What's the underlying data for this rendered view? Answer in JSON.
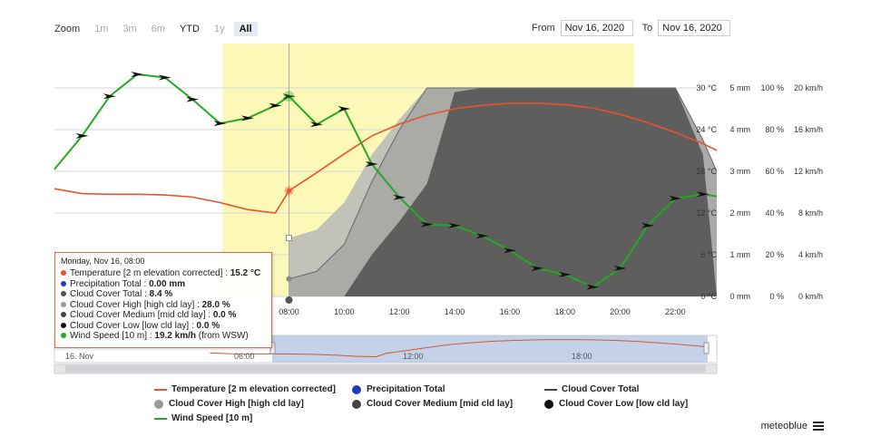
{
  "zoom": {
    "label": "Zoom",
    "buttons": [
      "1m",
      "3m",
      "6m",
      "YTD",
      "1y",
      "All"
    ],
    "selected": "All"
  },
  "range": {
    "from_label": "From",
    "from_value": "Nov 16, 2020",
    "to_label": "To",
    "to_value": "Nov 16, 2020"
  },
  "tooltip": {
    "header": "Monday, Nov 16, 08:00",
    "rows": [
      {
        "name": "Temperature [2 m elevation corrected]",
        "value": "15.2 °C",
        "color": "#e8532b"
      },
      {
        "name": "Precipitation Total",
        "value": "0.00 mm",
        "color": "#1f3fbf"
      },
      {
        "name": "Cloud Cover Total",
        "value": "8.4 %",
        "color": "#555555"
      },
      {
        "name": "Cloud Cover High [high cld lay]",
        "value": "28.0 %",
        "color": "#999999"
      },
      {
        "name": "Cloud Cover Medium [mid cld lay]",
        "value": "0.0 %",
        "color": "#444444"
      },
      {
        "name": "Cloud Cover Low [low cld lay]",
        "value": "0.0 %",
        "color": "#111111"
      },
      {
        "name": "Wind Speed [10 m]",
        "value": "19.2 km/h",
        "extra": "(from WSW)",
        "color": "#22aa22"
      }
    ]
  },
  "legend": [
    {
      "label": "Temperature [2 m elevation corrected]",
      "kind": "line",
      "color": "#e8532b"
    },
    {
      "label": "Precipitation Total",
      "kind": "dot",
      "color": "#1f3fbf"
    },
    {
      "label": "Cloud Cover Total",
      "kind": "line",
      "color": "#444444"
    },
    {
      "label": "Cloud Cover High [high cld lay]",
      "kind": "dot",
      "color": "#999999"
    },
    {
      "label": "Cloud Cover Medium [mid cld lay]",
      "kind": "dot",
      "color": "#444444"
    },
    {
      "label": "Cloud Cover Low [low cld lay]",
      "kind": "dot",
      "color": "#111111"
    },
    {
      "label": "Wind Speed [10 m]",
      "kind": "line",
      "color": "#22aa22"
    }
  ],
  "brand": "meteoblue",
  "navigator": {
    "labels": [
      "16. Nov",
      "06:00",
      "12:00",
      "18:00"
    ]
  },
  "chart_data": {
    "type": "line",
    "title": "",
    "x_unit": "hour of day, Nov 16",
    "x_ticks": [
      "08:00",
      "10:00",
      "12:00",
      "14:00",
      "16:00",
      "18:00",
      "20:00",
      "22:00"
    ],
    "x_range": [
      -0.5,
      23.5
    ],
    "axes": [
      {
        "unit": "°C",
        "ticks": [
          "0 °C",
          "6 °C",
          "12 °C",
          "18 °C",
          "24 °C",
          "30 °C"
        ],
        "range": [
          0,
          30
        ]
      },
      {
        "unit": "mm",
        "ticks": [
          "0 mm",
          "1 mm",
          "2 mm",
          "3 mm",
          "4 mm",
          "5 mm"
        ],
        "range": [
          0,
          5
        ]
      },
      {
        "unit": "%",
        "ticks": [
          "0 %",
          "20 %",
          "40 %",
          "60 %",
          "80 %",
          "100 %"
        ],
        "range": [
          0,
          100
        ]
      },
      {
        "unit": "km/h",
        "ticks": [
          "0 km/h",
          "4 km/h",
          "8 km/h",
          "12 km/h",
          "16 km/h",
          "20 km/h"
        ],
        "range": [
          0,
          20
        ]
      }
    ],
    "daylight_band": [
      5.6,
      20.5
    ],
    "highlight_x": 8,
    "series": [
      {
        "name": "Temperature [2 m elevation corrected]",
        "axis": "°C",
        "color": "#e8532b",
        "x": [
          -0.5,
          0.5,
          1.5,
          2.5,
          3.5,
          4.5,
          5.5,
          6.5,
          7.5,
          8,
          9,
          10,
          11,
          12,
          13,
          14,
          15,
          16,
          17,
          18,
          19,
          20,
          21,
          22,
          23,
          23.5
        ],
        "y": [
          15.5,
          14.8,
          14.7,
          14.7,
          14.6,
          14.3,
          13.5,
          12.5,
          12.0,
          15.2,
          17.8,
          20.5,
          23.1,
          24.8,
          26.1,
          27.0,
          27.5,
          27.8,
          27.8,
          27.6,
          27.1,
          26.2,
          25.0,
          23.6,
          22.0,
          21.0
        ]
      },
      {
        "name": "Wind Speed [10 m]",
        "axis": "km/h",
        "color": "#22aa22",
        "x": [
          -0.5,
          0.5,
          1.5,
          2.5,
          3.5,
          4.5,
          5.5,
          6.5,
          7.5,
          8,
          9,
          10,
          11,
          12,
          13,
          14,
          15,
          16,
          17,
          18,
          19,
          20,
          21,
          22,
          23,
          23.5
        ],
        "y": [
          12.2,
          15.4,
          19.2,
          21.3,
          21.0,
          18.9,
          16.6,
          17.1,
          18.3,
          19.2,
          16.5,
          18.0,
          12.7,
          9.5,
          6.9,
          6.8,
          5.8,
          4.4,
          2.7,
          2.1,
          0.9,
          2.7,
          6.8,
          9.4,
          9.8,
          9.6
        ]
      },
      {
        "name": "Cloud Cover Total",
        "axis": "%",
        "color": "#555555",
        "x": [
          8,
          9,
          10,
          11,
          12,
          13,
          14,
          15,
          16,
          17,
          18,
          19,
          20,
          21,
          22,
          23,
          23.5
        ],
        "y": [
          8.4,
          12,
          25,
          55,
          80,
          100,
          100,
          100,
          100,
          100,
          100,
          100,
          100,
          100,
          100,
          75,
          60
        ]
      },
      {
        "name": "Cloud Cover High [high cld lay]",
        "axis": "%",
        "color": "#999999",
        "x": [
          8,
          9,
          10,
          11,
          12,
          13,
          14,
          15,
          16,
          17,
          18,
          19,
          20,
          21,
          22,
          23,
          23.5
        ],
        "y": [
          28,
          32,
          45,
          68,
          85,
          100,
          100,
          100,
          100,
          100,
          100,
          100,
          100,
          100,
          100,
          75,
          60
        ]
      },
      {
        "name": "Cloud Cover Medium [mid cld lay]",
        "axis": "%",
        "color": "#444444",
        "x": [
          8,
          10,
          11,
          12,
          13,
          14,
          15,
          16,
          17,
          18,
          19,
          20,
          21,
          22,
          23,
          23.5
        ],
        "y": [
          0,
          0,
          20,
          36,
          54,
          98,
          100,
          100,
          100,
          100,
          100,
          100,
          100,
          100,
          68,
          0
        ]
      },
      {
        "name": "Cloud Cover Low [low cld lay]",
        "axis": "%",
        "color": "#111111",
        "x": [
          8
        ],
        "y": [
          0
        ]
      },
      {
        "name": "Precipitation Total",
        "axis": "mm",
        "color": "#1f3fbf",
        "x": [
          8
        ],
        "y": [
          0
        ]
      }
    ]
  }
}
